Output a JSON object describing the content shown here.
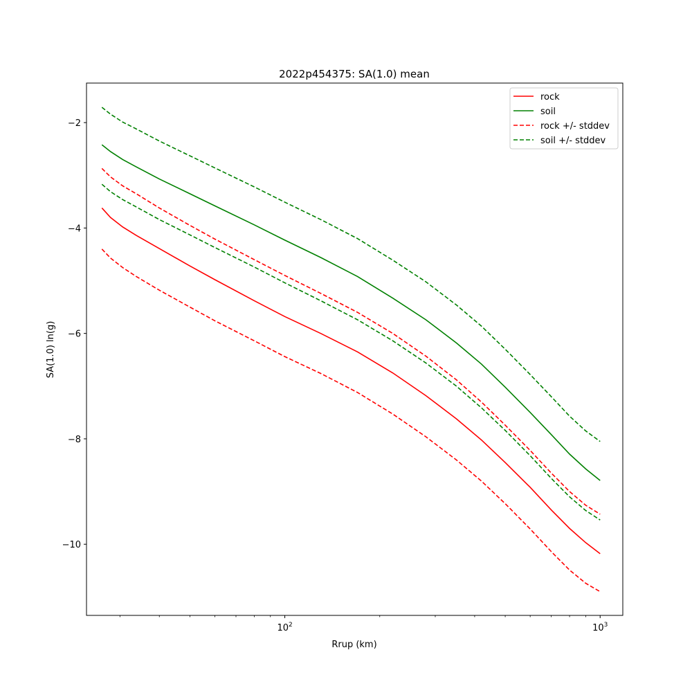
{
  "chart_data": {
    "type": "line",
    "title": "2022p454375: SA(1.0) mean",
    "xlabel": "Rrup (km)",
    "ylabel": "SA(1.0) ln(g)",
    "xscale": "log",
    "xlim": [
      23.5,
      1180
    ],
    "ylim": [
      -11.35,
      -1.25
    ],
    "x_ticks": [
      {
        "value": 100,
        "base": "10",
        "exp": "2"
      },
      {
        "value": 1000,
        "base": "10",
        "exp": "3"
      }
    ],
    "y_ticks": [
      {
        "value": -2,
        "label": "−2"
      },
      {
        "value": -4,
        "label": "−4"
      },
      {
        "value": -6,
        "label": "−6"
      },
      {
        "value": -8,
        "label": "−8"
      },
      {
        "value": -10,
        "label": "−10"
      }
    ],
    "grid": false,
    "legend_position": "top-right",
    "x": [
      26.3,
      28.0,
      30.6,
      33.8,
      40,
      50,
      60,
      80,
      100,
      130,
      170,
      220,
      280,
      350,
      420,
      500,
      600,
      700,
      800,
      900,
      1000
    ],
    "series": [
      {
        "name": "rock",
        "color": "#ff0000",
        "dashed": false,
        "values": [
          -3.62,
          -3.8,
          -3.98,
          -4.14,
          -4.39,
          -4.72,
          -4.98,
          -5.38,
          -5.68,
          -6.0,
          -6.35,
          -6.75,
          -7.18,
          -7.62,
          -8.02,
          -8.45,
          -8.92,
          -9.35,
          -9.7,
          -9.97,
          -10.18
        ]
      },
      {
        "name": "soil",
        "color": "#008000",
        "dashed": false,
        "values": [
          -2.42,
          -2.55,
          -2.7,
          -2.84,
          -3.07,
          -3.35,
          -3.58,
          -3.94,
          -4.23,
          -4.56,
          -4.92,
          -5.33,
          -5.74,
          -6.18,
          -6.58,
          -7.02,
          -7.5,
          -7.92,
          -8.29,
          -8.57,
          -8.79
        ]
      },
      {
        "name": "rock +/- stddev",
        "color": "#ff0000",
        "dashed": true,
        "values": [
          -2.87,
          -3.03,
          -3.2,
          -3.35,
          -3.62,
          -3.95,
          -4.21,
          -4.6,
          -4.9,
          -5.24,
          -5.6,
          -6.0,
          -6.43,
          -6.88,
          -7.3,
          -7.74,
          -8.22,
          -8.65,
          -9.0,
          -9.26,
          -9.43
        ]
      },
      {
        "name": "",
        "color": "#ff0000",
        "dashed": true,
        "values": [
          -4.4,
          -4.57,
          -4.75,
          -4.92,
          -5.18,
          -5.5,
          -5.76,
          -6.14,
          -6.44,
          -6.76,
          -7.12,
          -7.53,
          -7.96,
          -8.4,
          -8.8,
          -9.23,
          -9.71,
          -10.14,
          -10.49,
          -10.74,
          -10.9
        ]
      },
      {
        "name": "soil +/- stddev",
        "color": "#008000",
        "dashed": true,
        "values": [
          -1.71,
          -1.84,
          -1.99,
          -2.12,
          -2.35,
          -2.63,
          -2.86,
          -3.22,
          -3.51,
          -3.84,
          -4.2,
          -4.61,
          -5.02,
          -5.46,
          -5.86,
          -6.3,
          -6.78,
          -7.2,
          -7.57,
          -7.85,
          -8.05
        ]
      },
      {
        "name": "",
        "color": "#008000",
        "dashed": true,
        "values": [
          -3.17,
          -3.31,
          -3.46,
          -3.6,
          -3.84,
          -4.13,
          -4.37,
          -4.74,
          -5.04,
          -5.38,
          -5.74,
          -6.14,
          -6.56,
          -7.0,
          -7.41,
          -7.84,
          -8.32,
          -8.75,
          -9.1,
          -9.36,
          -9.54
        ]
      }
    ]
  }
}
